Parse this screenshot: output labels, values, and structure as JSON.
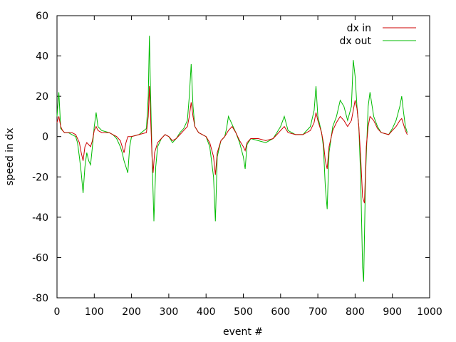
{
  "chart_data": {
    "type": "line",
    "title": "",
    "xlabel": "event #",
    "ylabel": "speed in dx",
    "xlim": [
      0,
      1000
    ],
    "ylim": [
      -80,
      60
    ],
    "xticks": [
      0,
      100,
      200,
      300,
      400,
      500,
      600,
      700,
      800,
      900,
      1000
    ],
    "yticks": [
      -80,
      -60,
      -40,
      -20,
      0,
      20,
      40,
      60
    ],
    "grid": false,
    "legend_position": "top-right",
    "series": [
      {
        "name": "dx in",
        "color": "#cc0000",
        "points": [
          [
            0,
            7
          ],
          [
            5,
            10
          ],
          [
            10,
            5
          ],
          [
            15,
            3
          ],
          [
            20,
            2
          ],
          [
            30,
            2
          ],
          [
            40,
            2
          ],
          [
            50,
            1
          ],
          [
            60,
            -3
          ],
          [
            65,
            -8
          ],
          [
            70,
            -12
          ],
          [
            75,
            -5
          ],
          [
            80,
            -3
          ],
          [
            90,
            -5
          ],
          [
            95,
            -2
          ],
          [
            100,
            3
          ],
          [
            105,
            5
          ],
          [
            110,
            3
          ],
          [
            120,
            2
          ],
          [
            140,
            2
          ],
          [
            150,
            1
          ],
          [
            160,
            0
          ],
          [
            170,
            -2
          ],
          [
            175,
            -5
          ],
          [
            180,
            -8
          ],
          [
            185,
            -3
          ],
          [
            190,
            0
          ],
          [
            200,
            0
          ],
          [
            220,
            1
          ],
          [
            240,
            2
          ],
          [
            245,
            10
          ],
          [
            248,
            25
          ],
          [
            250,
            15
          ],
          [
            255,
            -10
          ],
          [
            258,
            -18
          ],
          [
            262,
            -8
          ],
          [
            270,
            -3
          ],
          [
            280,
            -1
          ],
          [
            290,
            1
          ],
          [
            300,
            0
          ],
          [
            310,
            -2
          ],
          [
            320,
            -1
          ],
          [
            330,
            1
          ],
          [
            340,
            3
          ],
          [
            350,
            5
          ],
          [
            355,
            10
          ],
          [
            360,
            17
          ],
          [
            365,
            10
          ],
          [
            370,
            5
          ],
          [
            380,
            2
          ],
          [
            400,
            0
          ],
          [
            410,
            -3
          ],
          [
            420,
            -10
          ],
          [
            425,
            -19
          ],
          [
            430,
            -8
          ],
          [
            440,
            -2
          ],
          [
            450,
            0
          ],
          [
            460,
            3
          ],
          [
            470,
            5
          ],
          [
            480,
            2
          ],
          [
            490,
            -2
          ],
          [
            500,
            -5
          ],
          [
            505,
            -7
          ],
          [
            510,
            -3
          ],
          [
            520,
            -1
          ],
          [
            540,
            -1
          ],
          [
            560,
            -2
          ],
          [
            580,
            -1
          ],
          [
            590,
            1
          ],
          [
            600,
            3
          ],
          [
            610,
            5
          ],
          [
            620,
            2
          ],
          [
            640,
            1
          ],
          [
            660,
            1
          ],
          [
            680,
            3
          ],
          [
            690,
            7
          ],
          [
            695,
            12
          ],
          [
            700,
            8
          ],
          [
            710,
            2
          ],
          [
            715,
            -3
          ],
          [
            720,
            -12
          ],
          [
            725,
            -16
          ],
          [
            730,
            -5
          ],
          [
            740,
            3
          ],
          [
            750,
            7
          ],
          [
            760,
            10
          ],
          [
            770,
            8
          ],
          [
            780,
            5
          ],
          [
            790,
            8
          ],
          [
            800,
            18
          ],
          [
            805,
            14
          ],
          [
            810,
            5
          ],
          [
            815,
            -10
          ],
          [
            820,
            -30
          ],
          [
            825,
            -33
          ],
          [
            830,
            -5
          ],
          [
            835,
            5
          ],
          [
            840,
            10
          ],
          [
            850,
            8
          ],
          [
            860,
            4
          ],
          [
            870,
            2
          ],
          [
            890,
            1
          ],
          [
            900,
            3
          ],
          [
            910,
            5
          ],
          [
            920,
            8
          ],
          [
            925,
            9
          ],
          [
            930,
            6
          ],
          [
            935,
            3
          ],
          [
            940,
            1
          ]
        ]
      },
      {
        "name": "dx out",
        "color": "#00bb00",
        "points": [
          [
            0,
            10
          ],
          [
            5,
            22
          ],
          [
            10,
            4
          ],
          [
            15,
            3
          ],
          [
            20,
            2
          ],
          [
            30,
            2
          ],
          [
            40,
            1
          ],
          [
            50,
            0
          ],
          [
            55,
            -3
          ],
          [
            60,
            -10
          ],
          [
            65,
            -18
          ],
          [
            70,
            -28
          ],
          [
            75,
            -15
          ],
          [
            80,
            -8
          ],
          [
            85,
            -12
          ],
          [
            90,
            -14
          ],
          [
            95,
            -5
          ],
          [
            100,
            5
          ],
          [
            105,
            12
          ],
          [
            110,
            5
          ],
          [
            120,
            3
          ],
          [
            140,
            2
          ],
          [
            150,
            1
          ],
          [
            160,
            -1
          ],
          [
            170,
            -5
          ],
          [
            175,
            -8
          ],
          [
            180,
            -12
          ],
          [
            185,
            -15
          ],
          [
            190,
            -18
          ],
          [
            195,
            -5
          ],
          [
            200,
            0
          ],
          [
            220,
            1
          ],
          [
            240,
            4
          ],
          [
            245,
            20
          ],
          [
            248,
            50
          ],
          [
            250,
            30
          ],
          [
            255,
            -10
          ],
          [
            260,
            -42
          ],
          [
            265,
            -15
          ],
          [
            270,
            -5
          ],
          [
            280,
            -1
          ],
          [
            290,
            1
          ],
          [
            300,
            0
          ],
          [
            310,
            -3
          ],
          [
            320,
            -1
          ],
          [
            330,
            2
          ],
          [
            340,
            4
          ],
          [
            350,
            8
          ],
          [
            355,
            20
          ],
          [
            360,
            36
          ],
          [
            365,
            15
          ],
          [
            370,
            5
          ],
          [
            380,
            2
          ],
          [
            400,
            0
          ],
          [
            410,
            -5
          ],
          [
            420,
            -20
          ],
          [
            425,
            -42
          ],
          [
            430,
            -10
          ],
          [
            440,
            -2
          ],
          [
            450,
            0
          ],
          [
            455,
            4
          ],
          [
            460,
            10
          ],
          [
            470,
            6
          ],
          [
            480,
            2
          ],
          [
            490,
            -3
          ],
          [
            500,
            -10
          ],
          [
            505,
            -16
          ],
          [
            510,
            -4
          ],
          [
            520,
            -1
          ],
          [
            540,
            -2
          ],
          [
            560,
            -3
          ],
          [
            580,
            -1
          ],
          [
            590,
            2
          ],
          [
            600,
            5
          ],
          [
            610,
            10
          ],
          [
            620,
            3
          ],
          [
            640,
            1
          ],
          [
            660,
            1
          ],
          [
            680,
            5
          ],
          [
            690,
            13
          ],
          [
            695,
            25
          ],
          [
            700,
            10
          ],
          [
            710,
            2
          ],
          [
            715,
            -5
          ],
          [
            720,
            -25
          ],
          [
            725,
            -36
          ],
          [
            730,
            -8
          ],
          [
            740,
            5
          ],
          [
            750,
            10
          ],
          [
            760,
            18
          ],
          [
            770,
            15
          ],
          [
            780,
            8
          ],
          [
            790,
            15
          ],
          [
            795,
            38
          ],
          [
            800,
            30
          ],
          [
            805,
            15
          ],
          [
            810,
            5
          ],
          [
            815,
            -20
          ],
          [
            820,
            -65
          ],
          [
            823,
            -72
          ],
          [
            828,
            -20
          ],
          [
            835,
            15
          ],
          [
            840,
            22
          ],
          [
            850,
            10
          ],
          [
            860,
            5
          ],
          [
            870,
            2
          ],
          [
            890,
            1
          ],
          [
            900,
            4
          ],
          [
            910,
            8
          ],
          [
            920,
            15
          ],
          [
            925,
            20
          ],
          [
            930,
            12
          ],
          [
            935,
            5
          ],
          [
            940,
            2
          ]
        ]
      }
    ]
  }
}
